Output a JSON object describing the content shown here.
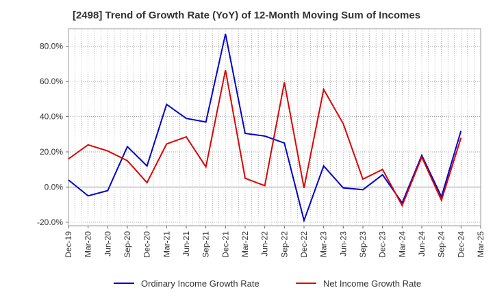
{
  "chart_data": {
    "type": "line",
    "title": "[2498]  Trend of Growth Rate (YoY) of 12-Month Moving Sum of Incomes",
    "xlabel": "",
    "ylabel": "",
    "categories": [
      "Dec-19",
      "Mar-20",
      "Jun-20",
      "Sep-20",
      "Dec-20",
      "Mar-21",
      "Jun-21",
      "Sep-21",
      "Dec-21",
      "Mar-22",
      "Jun-22",
      "Sep-22",
      "Dec-22",
      "Mar-23",
      "Jun-23",
      "Sep-23",
      "Dec-23",
      "Mar-24",
      "Jun-24",
      "Sep-24",
      "Dec-24",
      "Mar-25"
    ],
    "ylim": [
      -22,
      90
    ],
    "yticks": [
      -20,
      0,
      20,
      40,
      60,
      80
    ],
    "ytick_labels": [
      "-20.0%",
      "0.0%",
      "20.0%",
      "40.0%",
      "60.0%",
      "80.0%"
    ],
    "grid": true,
    "legend_position": "bottom",
    "series": [
      {
        "name": "Ordinary Income Growth Rate",
        "color": "#0000cc",
        "values": [
          4,
          -5,
          -2,
          23,
          12,
          47,
          39,
          37,
          87,
          30.5,
          29,
          25,
          -19,
          12,
          -0.5,
          -1.5,
          7,
          -9,
          18,
          -5.5,
          32,
          null
        ]
      },
      {
        "name": "Net Income Growth Rate",
        "color": "#dd0000",
        "values": [
          16,
          24,
          20.5,
          15,
          2.5,
          24.5,
          28.5,
          11.5,
          66.5,
          5,
          0.8,
          59.5,
          -0.5,
          55.5,
          36,
          4.5,
          10,
          -10.5,
          17,
          -7.5,
          28,
          null
        ]
      }
    ]
  }
}
